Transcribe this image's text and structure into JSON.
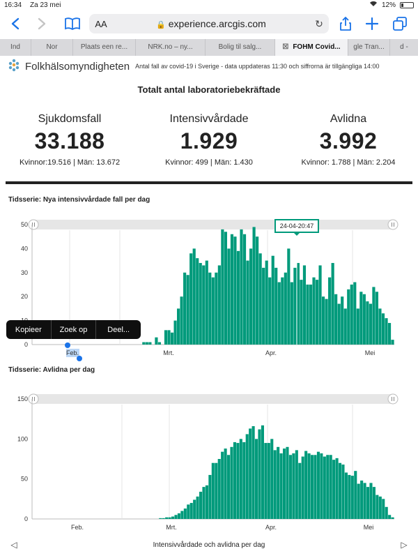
{
  "status": {
    "time": "16:34",
    "date": "Za 23 mei",
    "battery": "12%"
  },
  "browser": {
    "aa_label": "AA",
    "url": "experience.arcgis.com"
  },
  "tabs": [
    {
      "label": "Ind"
    },
    {
      "label": "Nor"
    },
    {
      "label": "Plaats een re..."
    },
    {
      "label": "NRK.no – ny..."
    },
    {
      "label": "Bolig til salg..."
    },
    {
      "label": "FOHM Covid..."
    },
    {
      "label": "gle Tran..."
    },
    {
      "label": "d -"
    }
  ],
  "header": {
    "org": "Folkhälsomyndigheten",
    "subtitle": "Antal fall av covid-19 i Sverige - data uppdateras 11:30 och siffrorna är tillgängliga 14:00"
  },
  "title": "Totalt antal laboratoriebekräftade",
  "stats": [
    {
      "label": "Sjukdomsfall",
      "value": "33.188",
      "sub": "Kvinnor:19.516 | Män: 13.672"
    },
    {
      "label": "Intensivvårdade",
      "value": "1.929",
      "sub": "Kvinnor: 499 | Män: 1.430"
    },
    {
      "label": "Avlidna",
      "value": "3.992",
      "sub": "Kvinnor: 1.788 | Män: 2.204"
    }
  ],
  "context_menu": {
    "copy": "Kopieer",
    "lookup": "Zoek op",
    "share": "Deel..."
  },
  "footer": {
    "caption": "Intensivvårdade och avlidna per dag"
  },
  "chart_data": [
    {
      "type": "bar",
      "title": "Tidsserie: Nya intensivvårdade fall per dag",
      "tooltip": "24-04-20:47",
      "selected_label": "Feb.",
      "ylim": [
        0,
        50
      ],
      "yticks": [
        0,
        10,
        20,
        30,
        40,
        50
      ],
      "xticks": [
        "Feb.",
        "Mrt.",
        "Apr.",
        "Mei"
      ],
      "values": [
        0,
        0,
        0,
        0,
        0,
        0,
        0,
        0,
        0,
        0,
        0,
        0,
        0,
        0,
        0,
        0,
        0,
        0,
        0,
        0,
        0,
        0,
        0,
        0,
        0,
        0,
        0,
        0,
        0,
        0,
        0,
        0,
        0,
        0,
        0,
        1,
        1,
        1,
        0,
        3,
        1,
        0,
        6,
        6,
        5,
        10,
        15,
        20,
        30,
        29,
        38,
        40,
        36,
        34,
        33,
        35,
        30,
        28,
        30,
        33,
        48,
        47,
        40,
        46,
        45,
        39,
        48,
        46,
        35,
        40,
        49,
        45,
        38,
        32,
        35,
        28,
        37,
        32,
        26,
        28,
        30,
        40,
        26,
        32,
        34,
        27,
        33,
        25,
        25,
        28,
        27,
        33,
        20,
        19,
        28,
        34,
        21,
        17,
        20,
        15,
        23,
        25,
        26,
        15,
        22,
        21,
        18,
        17,
        24,
        22,
        15,
        13,
        11,
        9,
        2
      ]
    },
    {
      "type": "bar",
      "title": "Tidsserie: Avlidna per dag",
      "ylim": [
        0,
        150
      ],
      "yticks": [
        0,
        50,
        100,
        150
      ],
      "xticks": [
        "Feb.",
        "Mrt.",
        "Apr.",
        "Mei"
      ],
      "values": [
        0,
        0,
        0,
        0,
        0,
        0,
        0,
        0,
        0,
        0,
        0,
        0,
        0,
        0,
        0,
        0,
        0,
        0,
        0,
        0,
        0,
        0,
        0,
        0,
        0,
        0,
        0,
        0,
        0,
        0,
        0,
        0,
        0,
        0,
        0,
        0,
        0,
        0,
        0,
        0,
        0,
        1,
        1,
        2,
        2,
        3,
        5,
        7,
        10,
        13,
        18,
        20,
        24,
        28,
        34,
        40,
        42,
        55,
        70,
        70,
        75,
        84,
        88,
        80,
        90,
        96,
        95,
        100,
        96,
        106,
        113,
        116,
        100,
        112,
        117,
        95,
        95,
        100,
        86,
        90,
        82,
        88,
        90,
        80,
        82,
        86,
        70,
        78,
        85,
        82,
        80,
        80,
        84,
        82,
        78,
        80,
        80,
        74,
        76,
        70,
        68,
        58,
        55,
        54,
        60,
        44,
        48,
        45,
        40,
        45,
        40,
        30,
        28,
        25,
        15,
        5,
        2
      ]
    }
  ]
}
